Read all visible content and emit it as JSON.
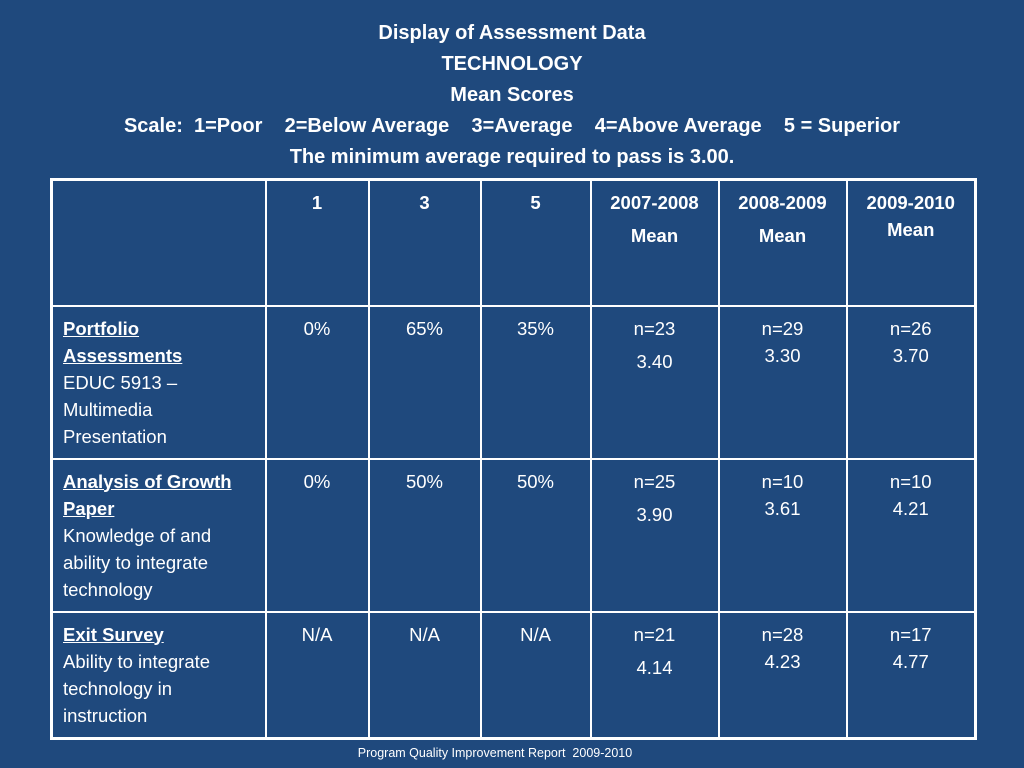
{
  "header": {
    "title": "Display of Assessment Data",
    "subject": "TECHNOLOGY",
    "subtitle": "Mean Scores",
    "scale": "Scale:  1=Poor    2=Below Average    3=Average    4=Above Average    5 = Superior",
    "pass_note": "The minimum average required to pass is 3.00."
  },
  "table": {
    "columns": [
      {
        "label": "",
        "sub": ""
      },
      {
        "label": "1",
        "sub": ""
      },
      {
        "label": "3",
        "sub": ""
      },
      {
        "label": "5",
        "sub": ""
      },
      {
        "label": "2007-2008",
        "sub": "Mean"
      },
      {
        "label": "2008-2009",
        "sub": "Mean"
      },
      {
        "label": "2009-2010",
        "sub": "Mean"
      }
    ],
    "rows": [
      {
        "title": "Portfolio Assessments",
        "desc": "EDUC 5913 – Multimedia Presentation",
        "p1": "0%",
        "p3": "65%",
        "p5": "35%",
        "y1_n": "n=23",
        "y1_mean": "3.40",
        "y2_n": "n=29",
        "y2_mean": "3.30",
        "y3_n": "n=26",
        "y3_mean": "3.70"
      },
      {
        "title": "Analysis of Growth Paper",
        "desc": "Knowledge of and ability to integrate technology",
        "p1": "0%",
        "p3": "50%",
        "p5": "50%",
        "y1_n": "n=25",
        "y1_mean": "3.90",
        "y2_n": "n=10",
        "y2_mean": "3.61",
        "y3_n": "n=10",
        "y3_mean": "4.21"
      },
      {
        "title": "Exit Survey",
        "desc": "Ability to integrate technology in instruction",
        "p1": "N/A",
        "p3": "N/A",
        "p5": "N/A",
        "y1_n": "n=21",
        "y1_mean": "4.14",
        "y2_n": "n=28",
        "y2_mean": "4.23",
        "y3_n": "n=17",
        "y3_mean": "4.77"
      }
    ]
  },
  "footer": {
    "text": "Program Quality Improvement Report  2009-2010"
  },
  "colors": {
    "background": "#1f497d",
    "text": "#ffffff",
    "border": "#ffffff"
  }
}
